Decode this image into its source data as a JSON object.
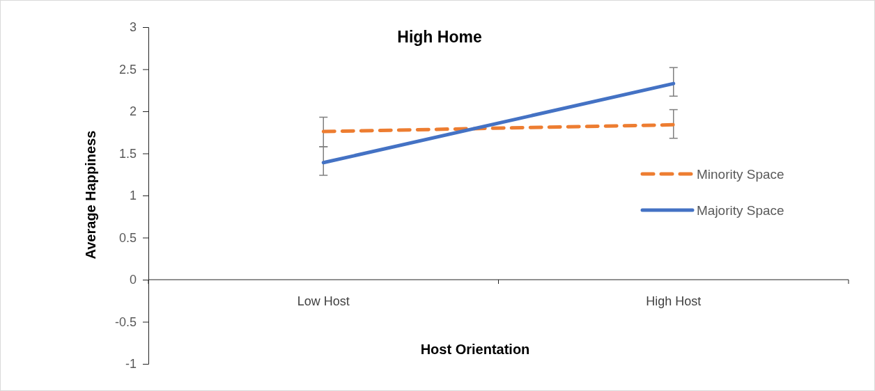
{
  "chart_data": {
    "type": "line",
    "title": "High Home",
    "xlabel": "Host Orientation",
    "ylabel": "Average Happiness",
    "categories": [
      "Low Host",
      "High Host"
    ],
    "series": [
      {
        "name": "Minority Space",
        "color": "#ed7d31",
        "line_style": "dashed",
        "values": [
          1.76,
          1.84
        ],
        "errors": [
          [
            1.58,
            1.93
          ],
          [
            1.68,
            2.02
          ]
        ]
      },
      {
        "name": "Majority Space",
        "color": "#4472c4",
        "line_style": "solid",
        "values": [
          1.39,
          2.33
        ],
        "errors": [
          [
            1.24,
            1.58
          ],
          [
            2.18,
            2.52
          ]
        ]
      }
    ],
    "ylim": [
      -1,
      3
    ],
    "yticks": [
      -1,
      -0.5,
      0,
      0.5,
      1,
      1.5,
      2,
      2.5,
      3
    ],
    "grid": false,
    "legend": "right",
    "marker": "none"
  }
}
